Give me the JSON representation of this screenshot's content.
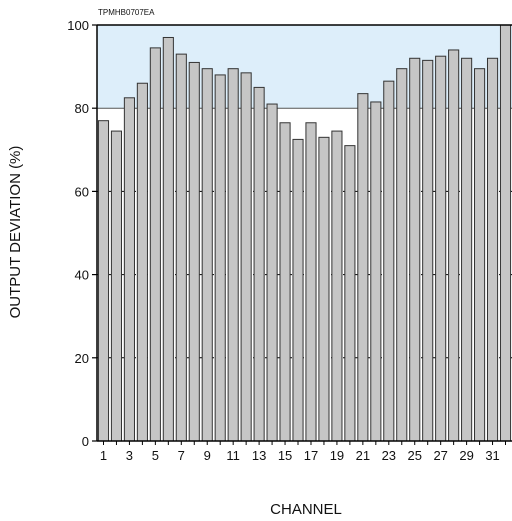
{
  "chart_data": {
    "type": "bar",
    "code_label": "TPMHB0707EA",
    "xlabel": "CHANNEL",
    "ylabel": "OUTPUT DEVIATION (%)",
    "ylim": [
      0,
      100
    ],
    "yticks": [
      0,
      20,
      40,
      60,
      80,
      100
    ],
    "categories": [
      1,
      2,
      3,
      4,
      5,
      6,
      7,
      8,
      9,
      10,
      11,
      12,
      13,
      14,
      15,
      16,
      17,
      18,
      19,
      20,
      21,
      22,
      23,
      24,
      25,
      26,
      27,
      28,
      29,
      30,
      31,
      32
    ],
    "xtick_labels": [
      "1",
      "3",
      "5",
      "7",
      "9",
      "11",
      "13",
      "15",
      "17",
      "19",
      "21",
      "23",
      "25",
      "27",
      "29",
      "31"
    ],
    "values": [
      77,
      74.5,
      82.5,
      86,
      94.5,
      97,
      93,
      91,
      89.5,
      88,
      89.5,
      88.5,
      85,
      81,
      76.5,
      72.5,
      76.5,
      73,
      74.5,
      71,
      83.5,
      81.5,
      86.5,
      89.5,
      92,
      91.5,
      92.5,
      94,
      92,
      89.5,
      92,
      100
    ],
    "shaded_band": [
      80,
      100
    ],
    "reference_line": 80,
    "grid": "dashed horizontal at 20, 40, 60",
    "colors": {
      "bar_fill": "#c6c6c6",
      "bar_stroke": "#333333",
      "band_fill": "#ddeefa",
      "axis": "#000000",
      "grid": "#000000"
    }
  }
}
